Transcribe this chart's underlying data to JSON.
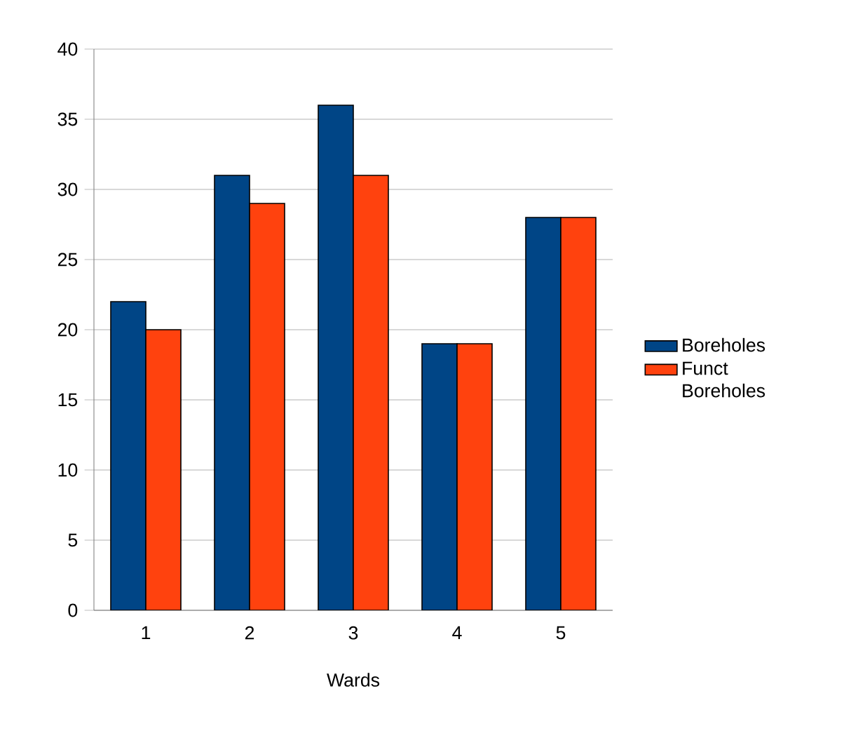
{
  "chart_data": {
    "type": "bar",
    "xlabel": "Wards",
    "categories": [
      "1",
      "2",
      "3",
      "4",
      "5"
    ],
    "series": [
      {
        "name": "Boreholes",
        "color": "#004586",
        "values": [
          22,
          31,
          36,
          19,
          28
        ]
      },
      {
        "name": "Funct Boreholes",
        "color": "#ff420e",
        "values": [
          20,
          29,
          31,
          19,
          28
        ]
      }
    ],
    "ylim": [
      0,
      40
    ],
    "yticks": [
      0,
      5,
      10,
      15,
      20,
      25,
      30,
      35,
      40
    ],
    "grid": "y",
    "legend": "right"
  }
}
